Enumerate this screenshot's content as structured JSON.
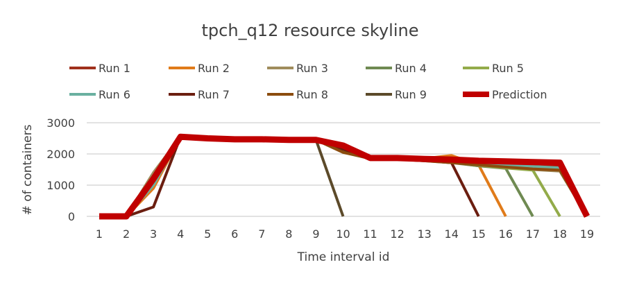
{
  "chart_data": {
    "type": "line",
    "title": "tpch_q12 resource skyline",
    "xlabel": "Time interval id",
    "ylabel": "# of containers",
    "ylim": [
      0,
      3000
    ],
    "yticks": [
      0,
      1000,
      2000,
      3000
    ],
    "grid": true,
    "legend_position": "top",
    "categories": [
      "1",
      "2",
      "3",
      "4",
      "5",
      "6",
      "7",
      "8",
      "9",
      "10",
      "11",
      "12",
      "13",
      "14",
      "15",
      "16",
      "17",
      "18",
      "19"
    ],
    "series": [
      {
        "name": "Run 1",
        "color": "#a0301c",
        "values": [
          0,
          0,
          1100,
          2550,
          2500,
          2470,
          2470,
          2450,
          2450,
          2150,
          1860,
          1860,
          1820,
          1780,
          1720,
          1680,
          1640,
          1600,
          0
        ]
      },
      {
        "name": "Run 2",
        "color": "#e07b1a",
        "values": [
          0,
          0,
          900,
          2550,
          2500,
          2470,
          2470,
          2450,
          2450,
          2150,
          1860,
          1860,
          1850,
          1950,
          1650,
          0,
          null,
          null,
          null
        ]
      },
      {
        "name": "Run 3",
        "color": "#a08c5c",
        "values": [
          0,
          0,
          1400,
          2550,
          2500,
          2470,
          2470,
          2450,
          2450,
          2100,
          1850,
          1830,
          1780,
          1720,
          1620,
          1560,
          1500,
          1450,
          0
        ]
      },
      {
        "name": "Run 4",
        "color": "#6f8a52",
        "values": [
          0,
          0,
          1050,
          2550,
          2500,
          2470,
          2470,
          2450,
          2450,
          2150,
          1860,
          1840,
          1790,
          1730,
          1620,
          1540,
          0,
          null,
          null
        ]
      },
      {
        "name": "Run 5",
        "color": "#93ab4a",
        "values": [
          0,
          0,
          1000,
          2550,
          2500,
          2470,
          2470,
          2450,
          2450,
          2150,
          1860,
          1840,
          1790,
          1740,
          1640,
          1550,
          1480,
          0,
          null
        ]
      },
      {
        "name": "Run 6",
        "color": "#6ab0a0",
        "values": [
          0,
          0,
          1000,
          2550,
          2500,
          2470,
          2470,
          2450,
          2450,
          2200,
          1860,
          1850,
          1800,
          1750,
          1700,
          1650,
          1600,
          1550,
          0
        ]
      },
      {
        "name": "Run 7",
        "color": "#6b1e10",
        "values": [
          0,
          0,
          300,
          2550,
          2500,
          2470,
          2470,
          2450,
          2450,
          2150,
          1860,
          1840,
          1790,
          1720,
          0,
          null,
          null,
          null,
          null
        ]
      },
      {
        "name": "Run 8",
        "color": "#8b4c0e",
        "values": [
          0,
          0,
          1300,
          2550,
          2500,
          2470,
          2470,
          2450,
          2450,
          2050,
          1850,
          1830,
          1780,
          1720,
          1650,
          1580,
          1520,
          1480,
          0
        ]
      },
      {
        "name": "Run 9",
        "color": "#5c4a2a",
        "values": [
          0,
          0,
          1200,
          2550,
          2500,
          2470,
          2470,
          2450,
          2450,
          0,
          null,
          null,
          null,
          null,
          null,
          null,
          null,
          null,
          null
        ]
      },
      {
        "name": "Prediction",
        "color": "#c00000",
        "values": [
          0,
          0,
          1200,
          2550,
          2500,
          2470,
          2470,
          2450,
          2450,
          2270,
          1870,
          1870,
          1840,
          1820,
          1780,
          1760,
          1740,
          1720,
          0
        ]
      }
    ]
  }
}
